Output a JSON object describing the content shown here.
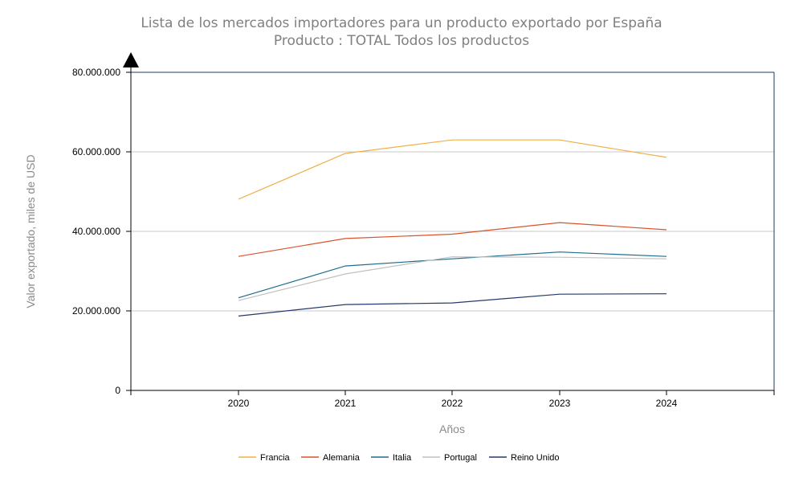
{
  "chart_data": {
    "type": "line",
    "title": "Lista de los mercados importadores para un producto exportado por España",
    "subtitle": "Producto : TOTAL Todos los productos",
    "xlabel": "Años",
    "ylabel": "Valor exportado, miles de USD",
    "x": [
      "2020",
      "2021",
      "2022",
      "2023",
      "2024"
    ],
    "ylim": [
      0,
      80000000
    ],
    "yticks": [
      0,
      20000000,
      40000000,
      60000000,
      80000000
    ],
    "ytick_labels": [
      "0",
      "20.000.000",
      "40.000.000",
      "60.000.000",
      "80.000.000"
    ],
    "grid": true,
    "legend_position": "bottom",
    "series": [
      {
        "name": "Francia",
        "color": "#f0b04a",
        "values": [
          48100000,
          59600000,
          63000000,
          63000000,
          58600000
        ]
      },
      {
        "name": "Alemania",
        "color": "#d9532b",
        "values": [
          33700000,
          38200000,
          39300000,
          42200000,
          40400000
        ]
      },
      {
        "name": "Italia",
        "color": "#1f6d8c",
        "values": [
          23300000,
          31300000,
          33100000,
          34800000,
          33700000
        ]
      },
      {
        "name": "Portugal",
        "color": "#c0c0c0",
        "values": [
          22600000,
          29300000,
          33600000,
          33500000,
          33100000
        ]
      },
      {
        "name": "Reino Unido",
        "color": "#243a6b",
        "values": [
          18700000,
          21600000,
          22000000,
          24200000,
          24300000
        ]
      }
    ]
  }
}
